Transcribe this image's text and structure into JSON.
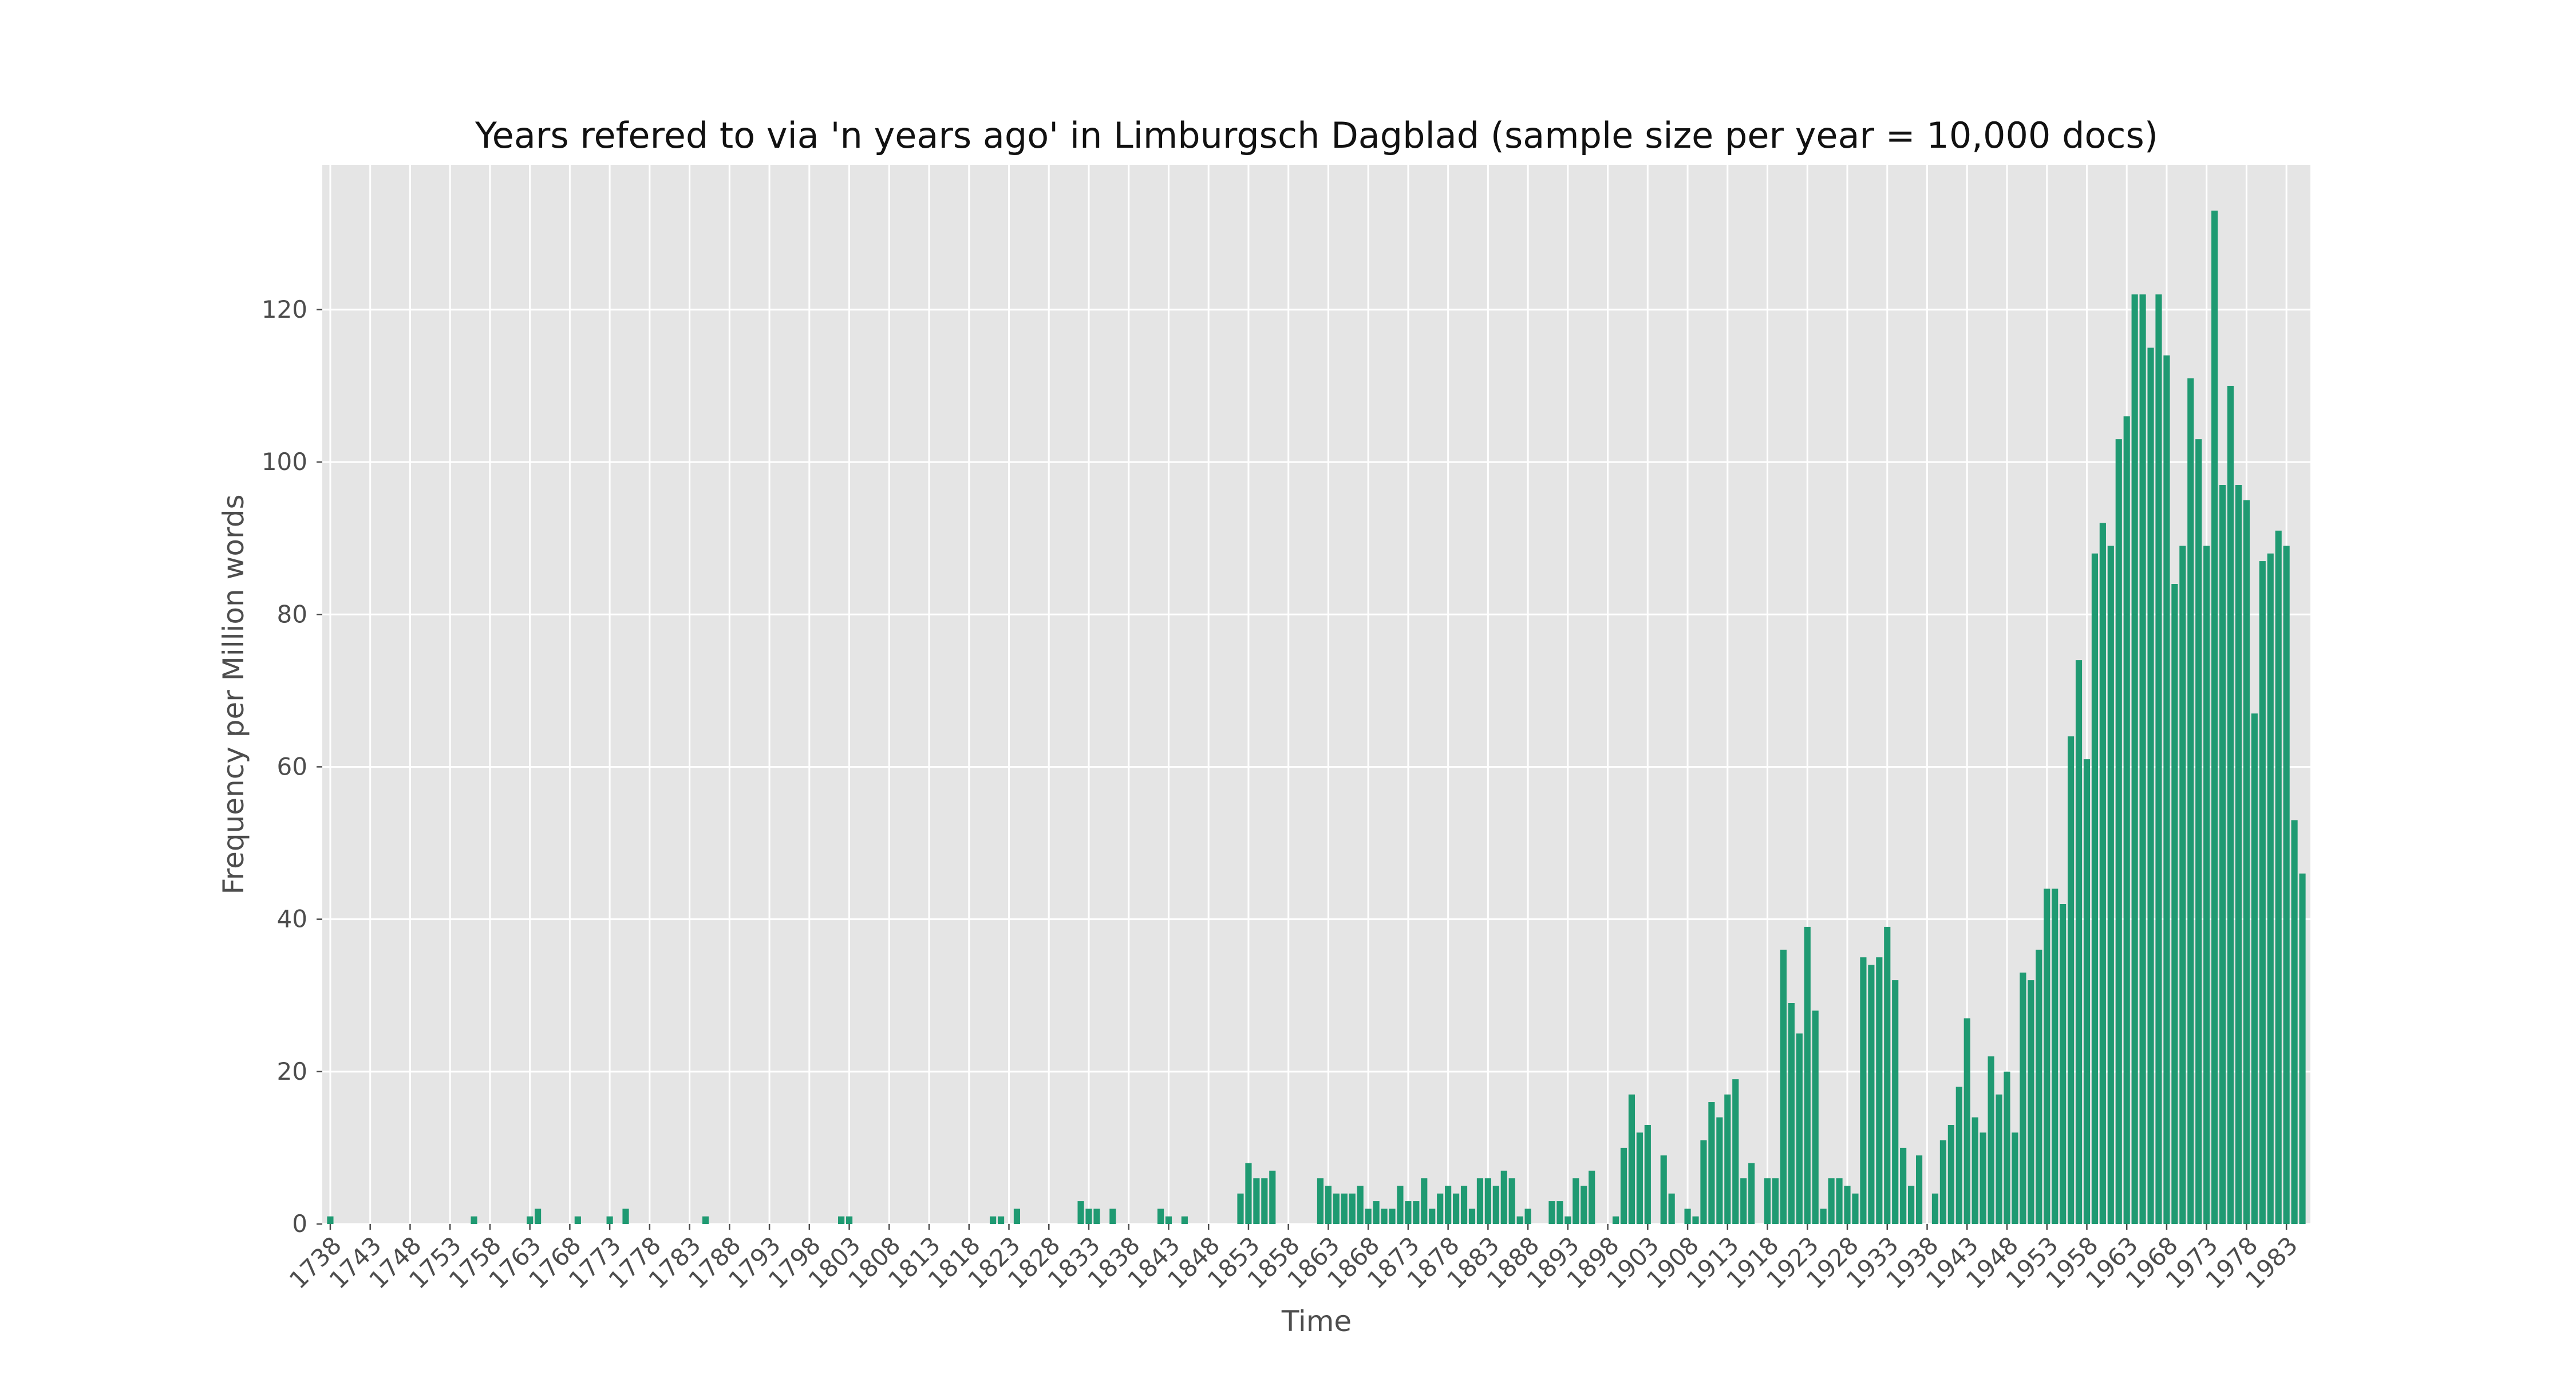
{
  "chart_data": {
    "type": "bar",
    "title": "Years refered to via 'n years ago' in Limburgsch Dagblad (sample size per year = 10,000 docs)",
    "xlabel": "Time",
    "ylabel": "Frequency per Million words",
    "ylim": [
      0,
      139
    ],
    "yticks": [
      0,
      20,
      40,
      60,
      80,
      100,
      120
    ],
    "xlim": [
      1737,
      1986
    ],
    "xticks": [
      1738,
      1743,
      1748,
      1753,
      1758,
      1763,
      1768,
      1773,
      1778,
      1783,
      1788,
      1793,
      1798,
      1803,
      1808,
      1813,
      1818,
      1823,
      1828,
      1833,
      1838,
      1843,
      1848,
      1853,
      1858,
      1863,
      1868,
      1873,
      1878,
      1883,
      1888,
      1893,
      1898,
      1903,
      1908,
      1913,
      1918,
      1923,
      1928,
      1933,
      1938,
      1943,
      1948,
      1953,
      1958,
      1963,
      1968,
      1973,
      1978,
      1983
    ],
    "grid": true,
    "bar_color": "#1f9a72",
    "background_color": "#e5e5e5",
    "x": [
      1738,
      1756,
      1763,
      1764,
      1769,
      1773,
      1775,
      1785,
      1802,
      1803,
      1821,
      1822,
      1824,
      1832,
      1833,
      1834,
      1836,
      1842,
      1843,
      1845,
      1852,
      1853,
      1854,
      1855,
      1856,
      1862,
      1863,
      1864,
      1865,
      1866,
      1867,
      1868,
      1869,
      1870,
      1871,
      1872,
      1873,
      1874,
      1875,
      1876,
      1877,
      1878,
      1879,
      1880,
      1881,
      1882,
      1883,
      1884,
      1885,
      1886,
      1887,
      1888,
      1891,
      1892,
      1893,
      1894,
      1895,
      1896,
      1899,
      1900,
      1901,
      1902,
      1903,
      1905,
      1906,
      1908,
      1909,
      1910,
      1911,
      1912,
      1913,
      1914,
      1915,
      1916,
      1918,
      1919,
      1920,
      1921,
      1922,
      1923,
      1924,
      1925,
      1926,
      1927,
      1928,
      1929,
      1930,
      1931,
      1932,
      1933,
      1934,
      1935,
      1936,
      1937,
      1939,
      1940,
      1941,
      1942,
      1943,
      1944,
      1945,
      1946,
      1947,
      1948,
      1949,
      1950,
      1951,
      1952,
      1953,
      1954,
      1955,
      1956,
      1957,
      1958,
      1959,
      1960,
      1961,
      1962,
      1963,
      1964,
      1965,
      1966,
      1967,
      1968,
      1969,
      1970,
      1971,
      1972,
      1973,
      1974,
      1975,
      1976,
      1977,
      1978,
      1979,
      1980,
      1981,
      1982,
      1983,
      1984,
      1985
    ],
    "values": [
      1,
      1,
      1,
      2,
      1,
      1,
      2,
      1,
      1,
      1,
      1,
      1,
      2,
      3,
      2,
      2,
      2,
      2,
      1,
      1,
      4,
      8,
      6,
      6,
      7,
      6,
      5,
      4,
      4,
      4,
      5,
      2,
      3,
      2,
      2,
      5,
      3,
      3,
      6,
      2,
      4,
      5,
      4,
      5,
      2,
      6,
      6,
      5,
      7,
      6,
      1,
      2,
      3,
      3,
      1,
      6,
      5,
      7,
      1,
      10,
      17,
      12,
      13,
      9,
      4,
      2,
      1,
      11,
      16,
      14,
      17,
      19,
      6,
      8,
      6,
      6,
      36,
      29,
      25,
      39,
      28,
      2,
      6,
      6,
      5,
      4,
      35,
      34,
      35,
      39,
      32,
      10,
      5,
      9,
      4,
      11,
      13,
      18,
      27,
      14,
      12,
      22,
      17,
      20,
      12,
      33,
      32,
      36,
      44,
      44,
      42,
      64,
      74,
      61,
      88,
      92,
      89,
      103,
      106,
      122,
      122,
      115,
      122,
      114,
      84,
      89,
      111,
      103,
      89,
      133,
      97,
      110,
      97,
      95,
      67,
      87,
      88,
      91,
      89,
      53,
      46
    ]
  }
}
